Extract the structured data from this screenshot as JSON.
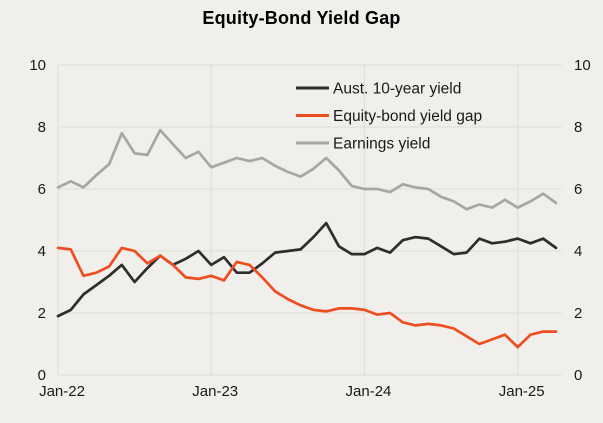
{
  "title": "Equity-Bond Yield Gap",
  "colors": {
    "background": "#f1efeb",
    "gridline": "#e2e0da",
    "tick_text": "#1a1a1a",
    "series_bond": "#2d2d2d",
    "series_gap": "#ee4e20",
    "series_earnings": "#a8a6a3"
  },
  "chart_data": {
    "type": "line",
    "title": "Equity-Bond Yield Gap",
    "xlabel": "",
    "ylabel": "",
    "ylim": [
      0,
      10
    ],
    "y_ticks": [
      0,
      2,
      4,
      6,
      8,
      10
    ],
    "y_axis_sides": [
      "left",
      "right"
    ],
    "grid": true,
    "legend_position": "top-center",
    "x": [
      "Jan-22",
      "Feb-22",
      "Mar-22",
      "Apr-22",
      "May-22",
      "Jun-22",
      "Jul-22",
      "Aug-22",
      "Sep-22",
      "Oct-22",
      "Nov-22",
      "Dec-22",
      "Jan-23",
      "Feb-23",
      "Mar-23",
      "Apr-23",
      "May-23",
      "Jun-23",
      "Jul-23",
      "Aug-23",
      "Sep-23",
      "Oct-23",
      "Nov-23",
      "Dec-23",
      "Jan-24",
      "Feb-24",
      "Mar-24",
      "Apr-24",
      "May-24",
      "Jun-24",
      "Jul-24",
      "Aug-24",
      "Sep-24",
      "Oct-24",
      "Nov-24",
      "Dec-24",
      "Jan-25",
      "Feb-25",
      "Mar-25",
      "Apr-25"
    ],
    "x_tick_labels": [
      "Jan-22",
      "Jan-23",
      "Jan-24",
      "Jan-25"
    ],
    "x_tick_indices": [
      0,
      12,
      24,
      36
    ],
    "series": [
      {
        "name": "Aust. 10-year yield",
        "color": "#2d2d2d",
        "values": [
          1.9,
          2.1,
          2.6,
          2.9,
          3.2,
          3.55,
          3.0,
          3.45,
          3.85,
          3.55,
          3.75,
          4.0,
          3.55,
          3.8,
          3.3,
          3.3,
          3.6,
          3.95,
          4.0,
          4.05,
          4.45,
          4.9,
          4.15,
          3.9,
          3.9,
          4.1,
          3.95,
          4.35,
          4.45,
          4.4,
          4.15,
          3.9,
          3.95,
          4.4,
          4.25,
          4.3,
          4.4,
          4.25,
          4.4,
          4.1
        ]
      },
      {
        "name": "Equity-bond yield gap",
        "color": "#ee4e20",
        "values": [
          4.1,
          4.05,
          3.2,
          3.3,
          3.5,
          4.1,
          4.0,
          3.6,
          3.85,
          3.55,
          3.15,
          3.1,
          3.2,
          3.05,
          3.65,
          3.55,
          3.15,
          2.7,
          2.45,
          2.25,
          2.1,
          2.05,
          2.15,
          2.15,
          2.1,
          1.95,
          2.0,
          1.7,
          1.6,
          1.65,
          1.6,
          1.5,
          1.25,
          1.0,
          1.15,
          1.3,
          0.9,
          1.3,
          1.4,
          1.4
        ]
      },
      {
        "name": "Earnings yield",
        "color": "#a8a6a3",
        "values": [
          6.05,
          6.25,
          6.05,
          6.45,
          6.8,
          7.8,
          7.15,
          7.1,
          7.9,
          7.45,
          7.0,
          7.2,
          6.7,
          6.85,
          7.0,
          6.9,
          7.0,
          6.75,
          6.55,
          6.4,
          6.65,
          7.0,
          6.6,
          6.1,
          6.0,
          6.0,
          5.9,
          6.15,
          6.05,
          6.0,
          5.75,
          5.6,
          5.35,
          5.5,
          5.4,
          5.65,
          5.4,
          5.6,
          5.85,
          5.55
        ]
      }
    ]
  }
}
